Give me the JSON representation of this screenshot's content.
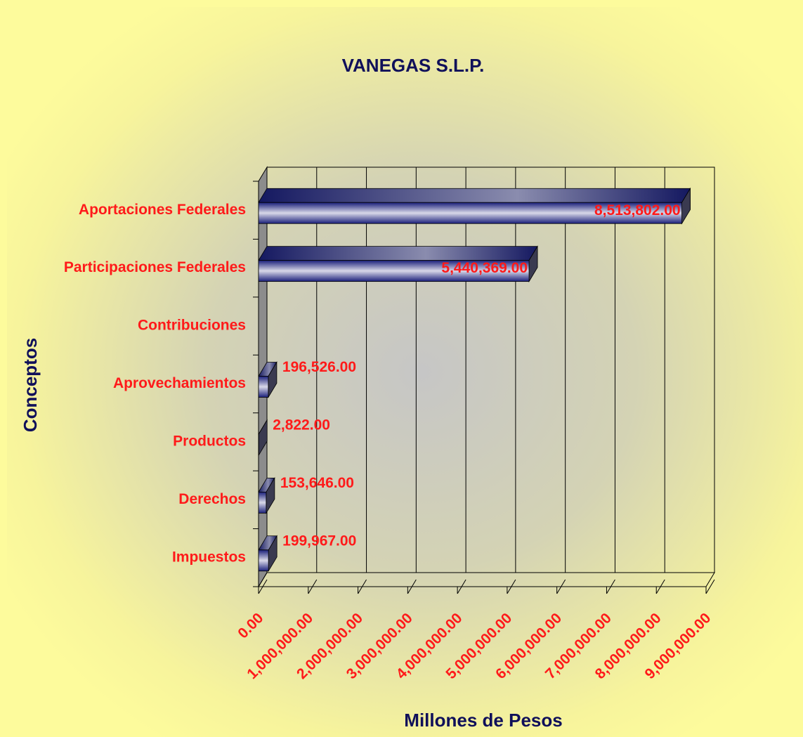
{
  "chart_data": {
    "type": "bar3d-horizontal",
    "title": "VANEGAS S.L.P.",
    "x_label": "Millones de Pesos",
    "y_label": "Conceptos",
    "categories": [
      "Aportaciones Federales",
      "Participaciones Federales",
      "Contribuciones",
      "Aprovechamientos",
      "Productos",
      "Derechos",
      "Impuestos"
    ],
    "values": [
      8513802,
      5440369,
      null,
      196526,
      2822,
      153646,
      199967
    ],
    "value_labels": [
      "8,513,802.00",
      "5,440,369.00",
      null,
      "196,526.00",
      "2,822.00",
      "153,646.00",
      "199,967.00"
    ],
    "color": "#1a1f7a",
    "xlim": [
      0,
      9000000
    ],
    "xticks": [
      {
        "value": 0,
        "label": "0.00"
      },
      {
        "value": 1000000,
        "label": "1,000,000.00"
      },
      {
        "value": 2000000,
        "label": "2,000,000.00"
      },
      {
        "value": 3000000,
        "label": "3,000,000.00"
      },
      {
        "value": 4000000,
        "label": "4,000,000.00"
      },
      {
        "value": 5000000,
        "label": "5,000,000.00"
      },
      {
        "value": 6000000,
        "label": "6,000,000.00"
      },
      {
        "value": 7000000,
        "label": "7,000,000.00"
      },
      {
        "value": 8000000,
        "label": "8,000,000.00"
      },
      {
        "value": 9000000,
        "label": "9,000,000.00"
      }
    ],
    "grid": true
  }
}
